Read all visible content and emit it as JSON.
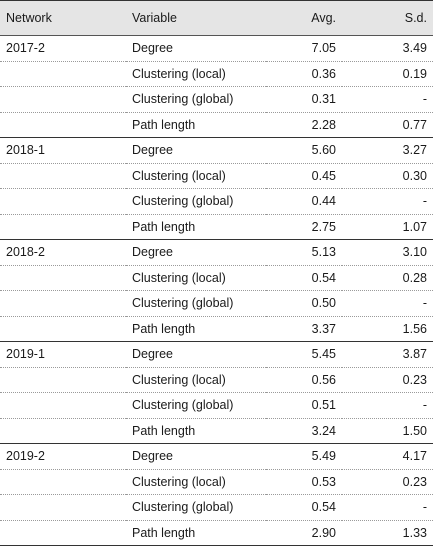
{
  "header": {
    "network": "Network",
    "variable": "Variable",
    "avg": "Avg.",
    "sd": "S.d."
  },
  "groups": [
    {
      "network": "2017-2",
      "rows": [
        {
          "variable": "Degree",
          "avg": "7.05",
          "sd": "3.49"
        },
        {
          "variable": "Clustering (local)",
          "avg": "0.36",
          "sd": "0.19"
        },
        {
          "variable": "Clustering (global)",
          "avg": "0.31",
          "sd": "-"
        },
        {
          "variable": "Path length",
          "avg": "2.28",
          "sd": "0.77"
        }
      ]
    },
    {
      "network": "2018-1",
      "rows": [
        {
          "variable": "Degree",
          "avg": "5.60",
          "sd": "3.27"
        },
        {
          "variable": "Clustering (local)",
          "avg": "0.45",
          "sd": "0.30"
        },
        {
          "variable": "Clustering (global)",
          "avg": "0.44",
          "sd": "-"
        },
        {
          "variable": "Path length",
          "avg": "2.75",
          "sd": "1.07"
        }
      ]
    },
    {
      "network": "2018-2",
      "rows": [
        {
          "variable": "Degree",
          "avg": "5.13",
          "sd": "3.10"
        },
        {
          "variable": "Clustering (local)",
          "avg": "0.54",
          "sd": "0.28"
        },
        {
          "variable": "Clustering (global)",
          "avg": "0.50",
          "sd": "-"
        },
        {
          "variable": "Path length",
          "avg": "3.37",
          "sd": "1.56"
        }
      ]
    },
    {
      "network": "2019-1",
      "rows": [
        {
          "variable": "Degree",
          "avg": "5.45",
          "sd": "3.87"
        },
        {
          "variable": "Clustering (local)",
          "avg": "0.56",
          "sd": "0.23"
        },
        {
          "variable": "Clustering (global)",
          "avg": "0.51",
          "sd": "-"
        },
        {
          "variable": "Path length",
          "avg": "3.24",
          "sd": "1.50"
        }
      ]
    },
    {
      "network": "2019-2",
      "rows": [
        {
          "variable": "Degree",
          "avg": "5.49",
          "sd": "4.17"
        },
        {
          "variable": "Clustering (local)",
          "avg": "0.53",
          "sd": "0.23"
        },
        {
          "variable": "Clustering (global)",
          "avg": "0.54",
          "sd": "-"
        },
        {
          "variable": "Path length",
          "avg": "2.90",
          "sd": "1.33"
        }
      ]
    }
  ]
}
